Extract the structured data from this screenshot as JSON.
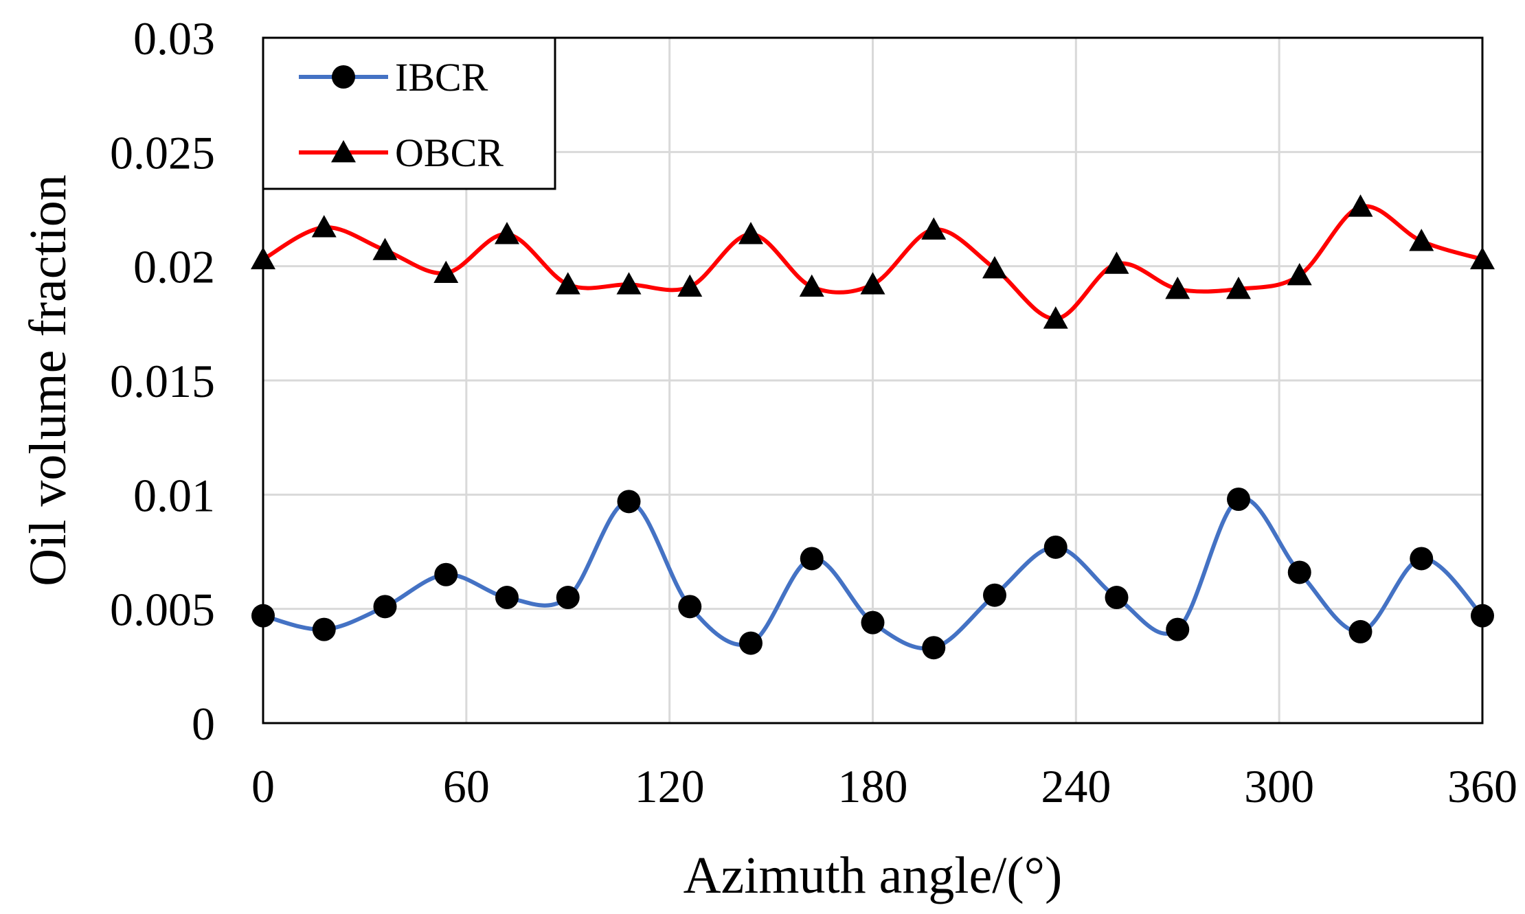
{
  "chart_data": {
    "type": "line",
    "title": "",
    "xlabel": "Azimuth angle/(°)",
    "ylabel": "Oil volume fraction",
    "xlim": [
      0,
      360
    ],
    "ylim": [
      0,
      0.03
    ],
    "x_ticks": [
      "0",
      "60",
      "120",
      "180",
      "240",
      "300",
      "360"
    ],
    "y_ticks": [
      "0",
      "0.005",
      "0.01",
      "0.015",
      "0.02",
      "0.025",
      "0.03"
    ],
    "grid": true,
    "legend_position": "top-left",
    "x": [
      0,
      18,
      36,
      54,
      72,
      90,
      108,
      126,
      144,
      162,
      180,
      198,
      216,
      234,
      252,
      270,
      288,
      306,
      324,
      342,
      360
    ],
    "series": [
      {
        "name": "IBCR",
        "color": "#4472C4",
        "marker": "circle",
        "values": [
          0.0047,
          0.0041,
          0.0051,
          0.0065,
          0.0055,
          0.0055,
          0.0097,
          0.0051,
          0.0035,
          0.0072,
          0.0044,
          0.0033,
          0.0056,
          0.0077,
          0.0055,
          0.0041,
          0.0098,
          0.0066,
          0.004,
          0.0072,
          0.0047
        ]
      },
      {
        "name": "OBCR",
        "color": "#FF0000",
        "marker": "triangle",
        "values": [
          0.0203,
          0.0217,
          0.0207,
          0.0197,
          0.0214,
          0.0192,
          0.0192,
          0.0191,
          0.0214,
          0.0191,
          0.0192,
          0.0216,
          0.0199,
          0.0177,
          0.0201,
          0.019,
          0.019,
          0.0196,
          0.0226,
          0.0211,
          0.0203
        ]
      }
    ]
  }
}
